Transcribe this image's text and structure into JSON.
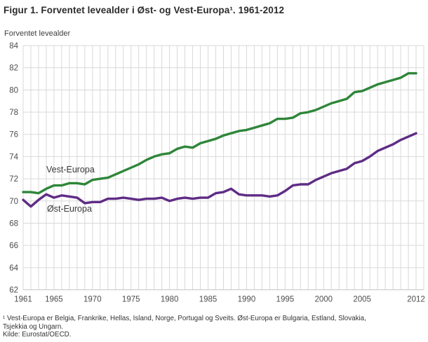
{
  "title": "Figur 1. Forventet levealder i Øst- og Vest-Europa¹. 1961-2012",
  "y_axis_title": "Forventet levealder",
  "footnotes": [
    "¹ Vest-Europa er Belgia, Frankrike, Hellas, Island, Norge, Portugal og Sveits. Øst-Europa er Bulgaria, Estland, Slovakia,",
    "Tsjekkia og Ungarn.",
    "Kilde: Eurostat/OECD."
  ],
  "colors": {
    "vest_europa": "#2e8639",
    "ost_europa": "#5f2c85",
    "gridline": "#d9d9d9",
    "axis_line": "#c6c6c6",
    "tick_text": "#4d4d4d"
  },
  "chart_data": {
    "type": "line",
    "title": "Figur 1. Forventet levealder i Øst- og Vest-Europa. 1961-2012",
    "xlabel": "",
    "ylabel": "Forventet levealder",
    "ylim": [
      62,
      84
    ],
    "xlim": [
      1961,
      2013
    ],
    "grid": true,
    "yticks": [
      62,
      64,
      66,
      68,
      70,
      72,
      74,
      76,
      78,
      80,
      82,
      84
    ],
    "xticks": [
      1961,
      1965,
      1970,
      1975,
      1980,
      1985,
      1990,
      1995,
      2000,
      2005,
      2012
    ],
    "x": [
      1961,
      1962,
      1963,
      1964,
      1965,
      1966,
      1967,
      1968,
      1969,
      1970,
      1971,
      1972,
      1973,
      1974,
      1975,
      1976,
      1977,
      1978,
      1979,
      1980,
      1981,
      1982,
      1983,
      1984,
      1985,
      1986,
      1987,
      1988,
      1989,
      1990,
      1991,
      1992,
      1993,
      1994,
      1995,
      1996,
      1997,
      1998,
      1999,
      2000,
      2001,
      2002,
      2003,
      2004,
      2005,
      2006,
      2007,
      2008,
      2009,
      2010,
      2011,
      2012
    ],
    "series": [
      {
        "name": "Vest-Europa",
        "color": "#2e8639",
        "values": [
          70.8,
          70.8,
          70.7,
          71.1,
          71.4,
          71.4,
          71.6,
          71.6,
          71.5,
          71.9,
          72.0,
          72.1,
          72.4,
          72.7,
          73.0,
          73.3,
          73.7,
          74.0,
          74.2,
          74.3,
          74.7,
          74.9,
          74.8,
          75.2,
          75.4,
          75.6,
          75.9,
          76.1,
          76.3,
          76.4,
          76.6,
          76.8,
          77.0,
          77.4,
          77.4,
          77.5,
          77.9,
          78.0,
          78.2,
          78.5,
          78.8,
          79.0,
          79.2,
          79.8,
          79.9,
          80.2,
          80.5,
          80.7,
          80.9,
          81.1,
          81.5,
          81.5
        ]
      },
      {
        "name": "Øst-Europa",
        "color": "#5f2c85",
        "values": [
          70.1,
          69.5,
          70.1,
          70.6,
          70.3,
          70.5,
          70.4,
          70.3,
          69.8,
          69.9,
          69.9,
          70.2,
          70.2,
          70.3,
          70.2,
          70.1,
          70.2,
          70.2,
          70.3,
          70.0,
          70.2,
          70.3,
          70.2,
          70.3,
          70.3,
          70.7,
          70.8,
          71.1,
          70.6,
          70.5,
          70.5,
          70.5,
          70.4,
          70.5,
          70.9,
          71.4,
          71.5,
          71.5,
          71.9,
          72.2,
          72.5,
          72.7,
          72.9,
          73.4,
          73.6,
          74.0,
          74.5,
          74.8,
          75.1,
          75.5,
          75.8,
          76.1
        ]
      }
    ],
    "legend_position": "inline-labels"
  }
}
